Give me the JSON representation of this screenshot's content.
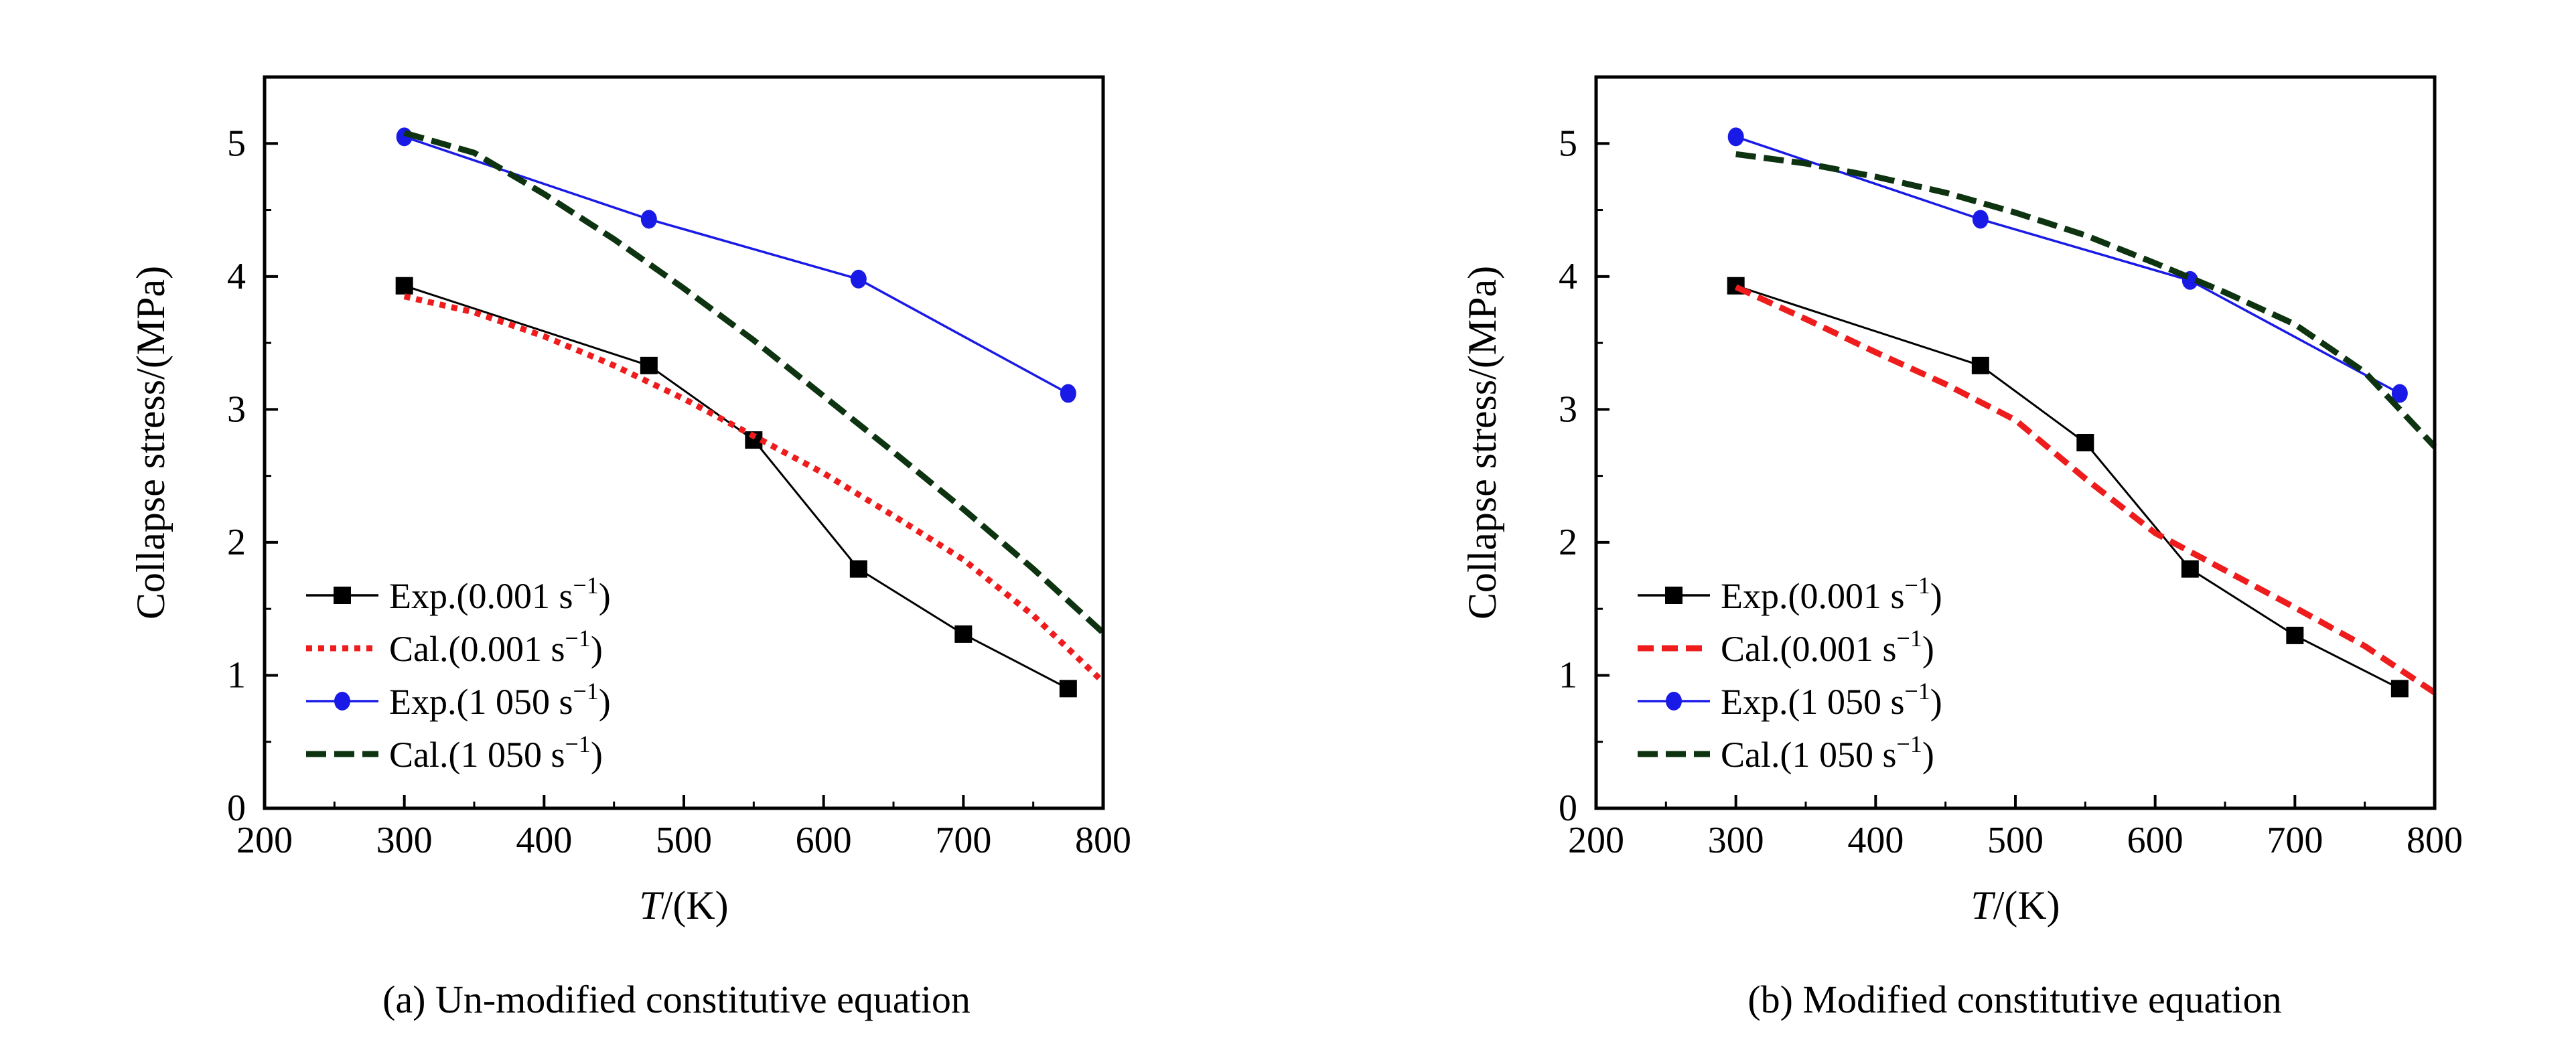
{
  "chart_data": [
    {
      "type": "line",
      "panel": "a",
      "caption": "(a) Un-modified constitutive equation",
      "xlabel_italic": "T",
      "xlabel_unit": "/(K)",
      "ylabel": "Collapse stress/(MPa)",
      "xlim": [
        200,
        800
      ],
      "ylim": [
        0,
        5.5
      ],
      "xticks": [
        200,
        300,
        400,
        500,
        600,
        700,
        800
      ],
      "yticks": [
        0,
        1,
        2,
        3,
        4,
        5
      ],
      "legend_position": "lower-left",
      "series": [
        {
          "name": "Exp.(0.001 s",
          "sup": "−1",
          "tail": ")",
          "color": "#000000",
          "style": "solid",
          "marker": "square",
          "x": [
            300,
            475,
            550,
            625,
            700,
            775
          ],
          "y": [
            3.93,
            3.33,
            2.77,
            1.8,
            1.31,
            0.9
          ]
        },
        {
          "name": "Cal.(0.001 s",
          "sup": "−1",
          "tail": ")",
          "color": "#ee1c1c",
          "style": "dotted",
          "marker": "none",
          "x": [
            300,
            350,
            400,
            450,
            500,
            550,
            600,
            650,
            700,
            750,
            800
          ],
          "y": [
            3.85,
            3.73,
            3.55,
            3.33,
            3.08,
            2.8,
            2.52,
            2.2,
            1.87,
            1.45,
            0.95
          ]
        },
        {
          "name": "Exp.(1 050 s",
          "sup": "−1",
          "tail": ")",
          "color": "#1a1ae6",
          "style": "solid",
          "marker": "circle",
          "x": [
            300,
            475,
            625,
            775
          ],
          "y": [
            5.05,
            4.43,
            3.98,
            3.12
          ]
        },
        {
          "name": "Cal.(1 050 s",
          "sup": "−1",
          "tail": ")",
          "color": "#0d3310",
          "style": "dashed",
          "marker": "none",
          "x": [
            300,
            350,
            400,
            450,
            500,
            550,
            600,
            650,
            700,
            750,
            800
          ],
          "y": [
            5.08,
            4.93,
            4.62,
            4.28,
            3.91,
            3.52,
            3.1,
            2.68,
            2.25,
            1.8,
            1.32
          ]
        }
      ]
    },
    {
      "type": "line",
      "panel": "b",
      "caption": "(b) Modified constitutive equation",
      "xlabel_italic": "T",
      "xlabel_unit": "/(K)",
      "ylabel": "Collapse stress/(MPa)",
      "xlim": [
        200,
        800
      ],
      "ylim": [
        0,
        5.5
      ],
      "xticks": [
        200,
        300,
        400,
        500,
        600,
        700,
        800
      ],
      "yticks": [
        0,
        1,
        2,
        3,
        4,
        5
      ],
      "legend_position": "lower-left",
      "series": [
        {
          "name": "Exp.(0.001 s",
          "sup": "−1",
          "tail": ")",
          "color": "#000000",
          "style": "solid",
          "marker": "square",
          "x": [
            300,
            475,
            550,
            625,
            700,
            775
          ],
          "y": [
            3.93,
            3.33,
            2.75,
            1.8,
            1.3,
            0.9
          ]
        },
        {
          "name": "Cal.(0.001 s",
          "sup": "−1",
          "tail": ")",
          "color": "#ee1c1c",
          "style": "dashed-red",
          "marker": "none",
          "x": [
            300,
            350,
            400,
            450,
            500,
            550,
            600,
            650,
            700,
            750,
            800
          ],
          "y": [
            3.92,
            3.68,
            3.43,
            3.19,
            2.92,
            2.48,
            2.07,
            1.79,
            1.51,
            1.22,
            0.87
          ]
        },
        {
          "name": "Exp.(1 050 s",
          "sup": "−1",
          "tail": ")",
          "color": "#1a1ae6",
          "style": "solid",
          "marker": "circle",
          "x": [
            300,
            475,
            625,
            775
          ],
          "y": [
            5.05,
            4.43,
            3.97,
            3.12
          ]
        },
        {
          "name": "Cal.(1 050 s",
          "sup": "−1",
          "tail": ")",
          "color": "#0d3310",
          "style": "dashed",
          "marker": "none",
          "x": [
            300,
            350,
            400,
            450,
            500,
            550,
            600,
            650,
            700,
            750,
            800
          ],
          "y": [
            4.92,
            4.85,
            4.75,
            4.63,
            4.48,
            4.31,
            4.1,
            3.88,
            3.64,
            3.28,
            2.72
          ]
        }
      ]
    }
  ]
}
